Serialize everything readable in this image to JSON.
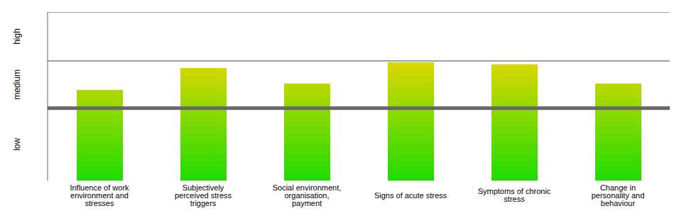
{
  "chart_data": {
    "type": "bar",
    "categories": [
      "Influence of work environment and stresses",
      "Subjectively perceived stress triggers",
      "Social environment, organisation, payment",
      "Signs of acute stress",
      "Symptoms of chronic stress",
      "Change in personality and behaviour"
    ],
    "values": [
      53.8,
      66.8,
      57.6,
      70.2,
      68.9,
      57.6
    ],
    "color": "#1edc00",
    "ylim": [
      0,
      100
    ],
    "yticks": [
      {
        "value": 21.5,
        "label": "low"
      },
      {
        "value": 57,
        "label": "medium"
      },
      {
        "value": 85.5,
        "label": "high"
      }
    ],
    "band_edges": [
      43,
      71,
      100
    ]
  }
}
